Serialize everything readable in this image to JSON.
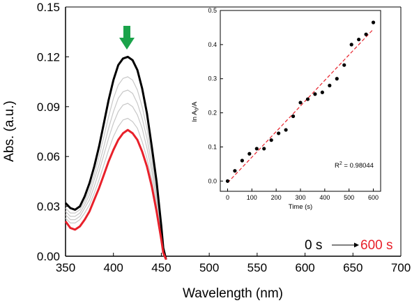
{
  "colors": {
    "start_curve": "#000000",
    "end_curve": "#e8202a",
    "intermediate_curves": "#c8c8c8",
    "arrow": "#1aa34a",
    "fit_line": "#e8202a",
    "inset_points": "#000000"
  },
  "chart_data": [
    {
      "type": "line",
      "xlabel": "Wavelength (nm)",
      "ylabel": "Abs. (a.u.)",
      "xlim": [
        350,
        700
      ],
      "ylim": [
        0,
        0.15
      ],
      "xticks": [
        350,
        400,
        450,
        500,
        550,
        600,
        650,
        700
      ],
      "xtick_labels": [
        "350",
        "400",
        "450",
        "500",
        "550",
        "600",
        "650",
        "700"
      ],
      "yticks": [
        0,
        0.03,
        0.06,
        0.09,
        0.12,
        0.15
      ],
      "ytick_labels": [
        "0.00",
        "0.03",
        "0.06",
        "0.09",
        "0.12",
        "0.15"
      ],
      "annotation": {
        "start_label": "0 s",
        "end_label": "600 s",
        "arrow_icon": "down-arrow-icon",
        "arrow_x": 415
      },
      "x": [
        350,
        355,
        360,
        365,
        370,
        375,
        380,
        385,
        390,
        395,
        400,
        405,
        410,
        415,
        420,
        425,
        430,
        435,
        440,
        445,
        450,
        452,
        455
      ],
      "series": [
        {
          "values": [
            0.032,
            0.029,
            0.028,
            0.03,
            0.036,
            0.044,
            0.054,
            0.066,
            0.08,
            0.094,
            0.106,
            0.115,
            0.119,
            0.12,
            0.118,
            0.112,
            0.101,
            0.086,
            0.066,
            0.045,
            0.018,
            0.005,
            -0.002
          ]
        },
        {
          "values": [
            0.029,
            0.026,
            0.026,
            0.028,
            0.033,
            0.04,
            0.049,
            0.06,
            0.072,
            0.084,
            0.095,
            0.103,
            0.107,
            0.108,
            0.106,
            0.1,
            0.09,
            0.077,
            0.06,
            0.04,
            0.016,
            0.004,
            -0.002
          ]
        },
        {
          "values": [
            0.027,
            0.024,
            0.024,
            0.026,
            0.031,
            0.037,
            0.046,
            0.055,
            0.066,
            0.077,
            0.087,
            0.095,
            0.099,
            0.1,
            0.098,
            0.092,
            0.083,
            0.071,
            0.055,
            0.037,
            0.015,
            0.004,
            -0.002
          ]
        },
        {
          "values": [
            0.025,
            0.022,
            0.022,
            0.024,
            0.029,
            0.034,
            0.042,
            0.051,
            0.061,
            0.071,
            0.08,
            0.087,
            0.091,
            0.092,
            0.09,
            0.085,
            0.077,
            0.065,
            0.051,
            0.034,
            0.014,
            0.003,
            -0.002
          ]
        },
        {
          "values": [
            0.023,
            0.02,
            0.02,
            0.022,
            0.026,
            0.031,
            0.038,
            0.046,
            0.055,
            0.064,
            0.072,
            0.078,
            0.082,
            0.083,
            0.081,
            0.077,
            0.069,
            0.059,
            0.046,
            0.031,
            0.012,
            0.003,
            -0.002
          ]
        },
        {
          "values": [
            0.021,
            0.017,
            0.016,
            0.018,
            0.022,
            0.027,
            0.034,
            0.041,
            0.049,
            0.057,
            0.064,
            0.07,
            0.074,
            0.076,
            0.074,
            0.07,
            0.063,
            0.054,
            0.042,
            0.027,
            0.01,
            0.002,
            -0.002
          ]
        }
      ]
    },
    {
      "type": "scatter",
      "xlabel": "Time (s)",
      "ylabel": "ln A",
      "ylabel_sub": "0",
      "ylabel_tail": "/A",
      "xlim": [
        -30,
        630
      ],
      "ylim": [
        -0.03,
        0.5
      ],
      "xticks": [
        0,
        100,
        200,
        300,
        400,
        500,
        600
      ],
      "xtick_labels": [
        "0",
        "100",
        "200",
        "300",
        "400",
        "500",
        "600"
      ],
      "yticks": [
        0.0,
        0.1,
        0.2,
        0.3,
        0.4,
        0.5
      ],
      "ytick_labels": [
        "0.0",
        "0.1",
        "0.2",
        "0.3",
        "0.4",
        "0.5"
      ],
      "r2_label": "R",
      "r2_sup": "2",
      "r2_value": " = 0.98044",
      "x": [
        0,
        30,
        60,
        90,
        120,
        150,
        180,
        210,
        240,
        270,
        300,
        330,
        360,
        390,
        420,
        450,
        480,
        510,
        540,
        570,
        600
      ],
      "values": [
        0.0,
        0.03,
        0.06,
        0.08,
        0.095,
        0.095,
        0.12,
        0.14,
        0.15,
        0.19,
        0.23,
        0.24,
        0.255,
        0.26,
        0.28,
        0.3,
        0.34,
        0.4,
        0.415,
        0.43,
        0.465
      ],
      "fit": {
        "x": [
          0,
          600
        ],
        "values": [
          -0.005,
          0.445
        ]
      }
    }
  ]
}
